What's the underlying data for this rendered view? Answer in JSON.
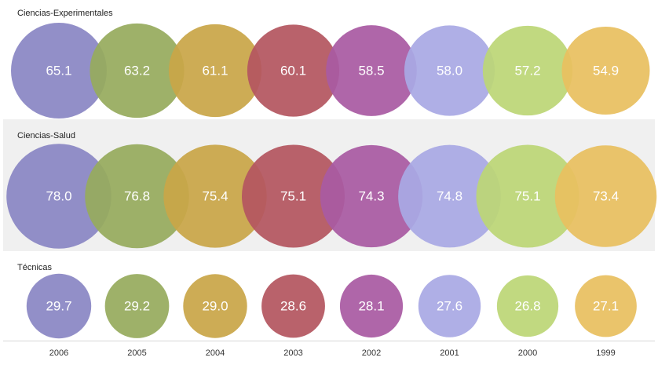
{
  "chart_data": {
    "type": "bubble",
    "categories": [
      "2006",
      "2005",
      "2004",
      "2003",
      "2002",
      "2001",
      "2000",
      "1999"
    ],
    "colors": [
      "#8a86c4",
      "#97ab5e",
      "#c9a648",
      "#b45660",
      "#a95aa3",
      "#a9a9e4",
      "#bcd676",
      "#e8c060"
    ],
    "bubble_opacity": 0.93,
    "panel_background": [
      "#ffffff",
      "#f0f0f0",
      "#ffffff"
    ],
    "grid": false,
    "legend": "none",
    "series": [
      {
        "name": "Ciencias-Experimentales",
        "values": [
          65.1,
          63.2,
          61.1,
          60.1,
          58.5,
          58.0,
          57.2,
          54.9
        ]
      },
      {
        "name": "Ciencias-Salud",
        "values": [
          78.0,
          76.8,
          75.4,
          75.1,
          74.3,
          74.8,
          75.1,
          73.4
        ]
      },
      {
        "name": "Técnicas",
        "values": [
          29.7,
          29.2,
          29.0,
          28.6,
          28.1,
          27.6,
          26.8,
          27.1
        ]
      }
    ]
  }
}
